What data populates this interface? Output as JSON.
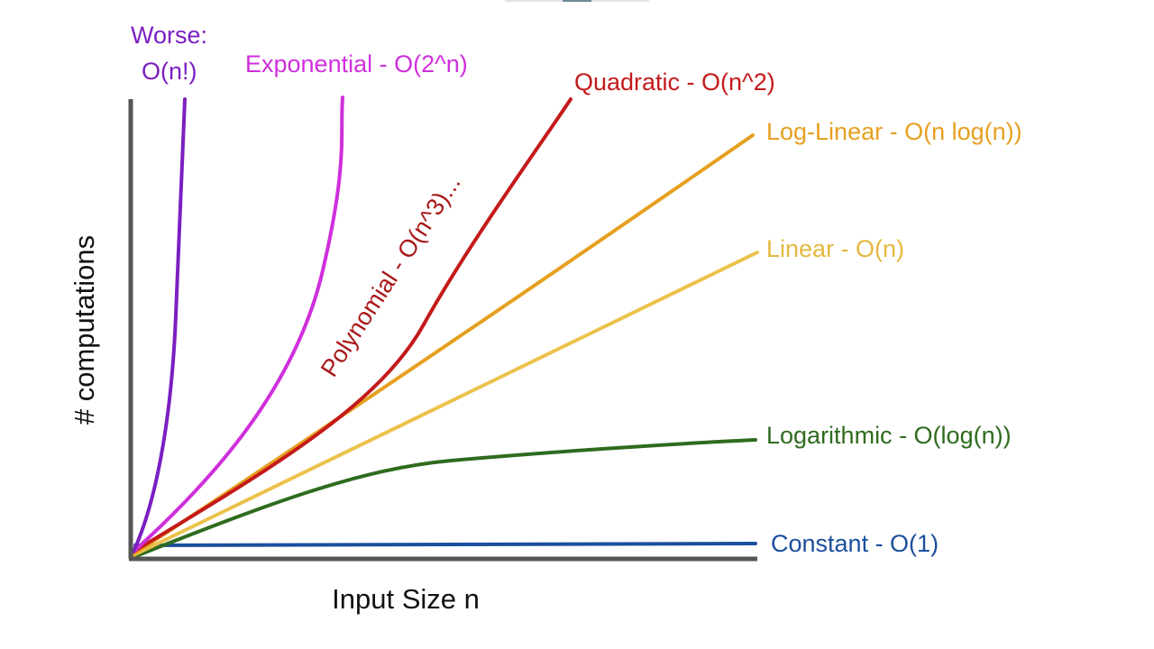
{
  "axes": {
    "x_label": "Input Size n",
    "y_label": "# computations",
    "color": "#555555"
  },
  "curves": [
    {
      "id": "factorial",
      "label_line1": "Worse:",
      "label_line2": "O(n!)",
      "color": "#7b1fc2"
    },
    {
      "id": "exponential",
      "label": "Exponential - O(2^n)",
      "color": "#cf2fdc"
    },
    {
      "id": "polynomial",
      "label": "Polynomial - O(n^3)...",
      "color": "#a81818"
    },
    {
      "id": "quadratic",
      "label": "Quadratic - O(n^2)",
      "color": "#c41a1a"
    },
    {
      "id": "log-linear",
      "label": "Log-Linear - O(n log(n))",
      "color": "#e6a020"
    },
    {
      "id": "linear",
      "label": "Linear - O(n)",
      "color": "#ecc24c"
    },
    {
      "id": "logarithmic",
      "label": "Logarithmic - O(log(n))",
      "color": "#2e6b1e"
    },
    {
      "id": "constant",
      "label": "Constant - O(1)",
      "color": "#1a4f9c"
    }
  ]
}
